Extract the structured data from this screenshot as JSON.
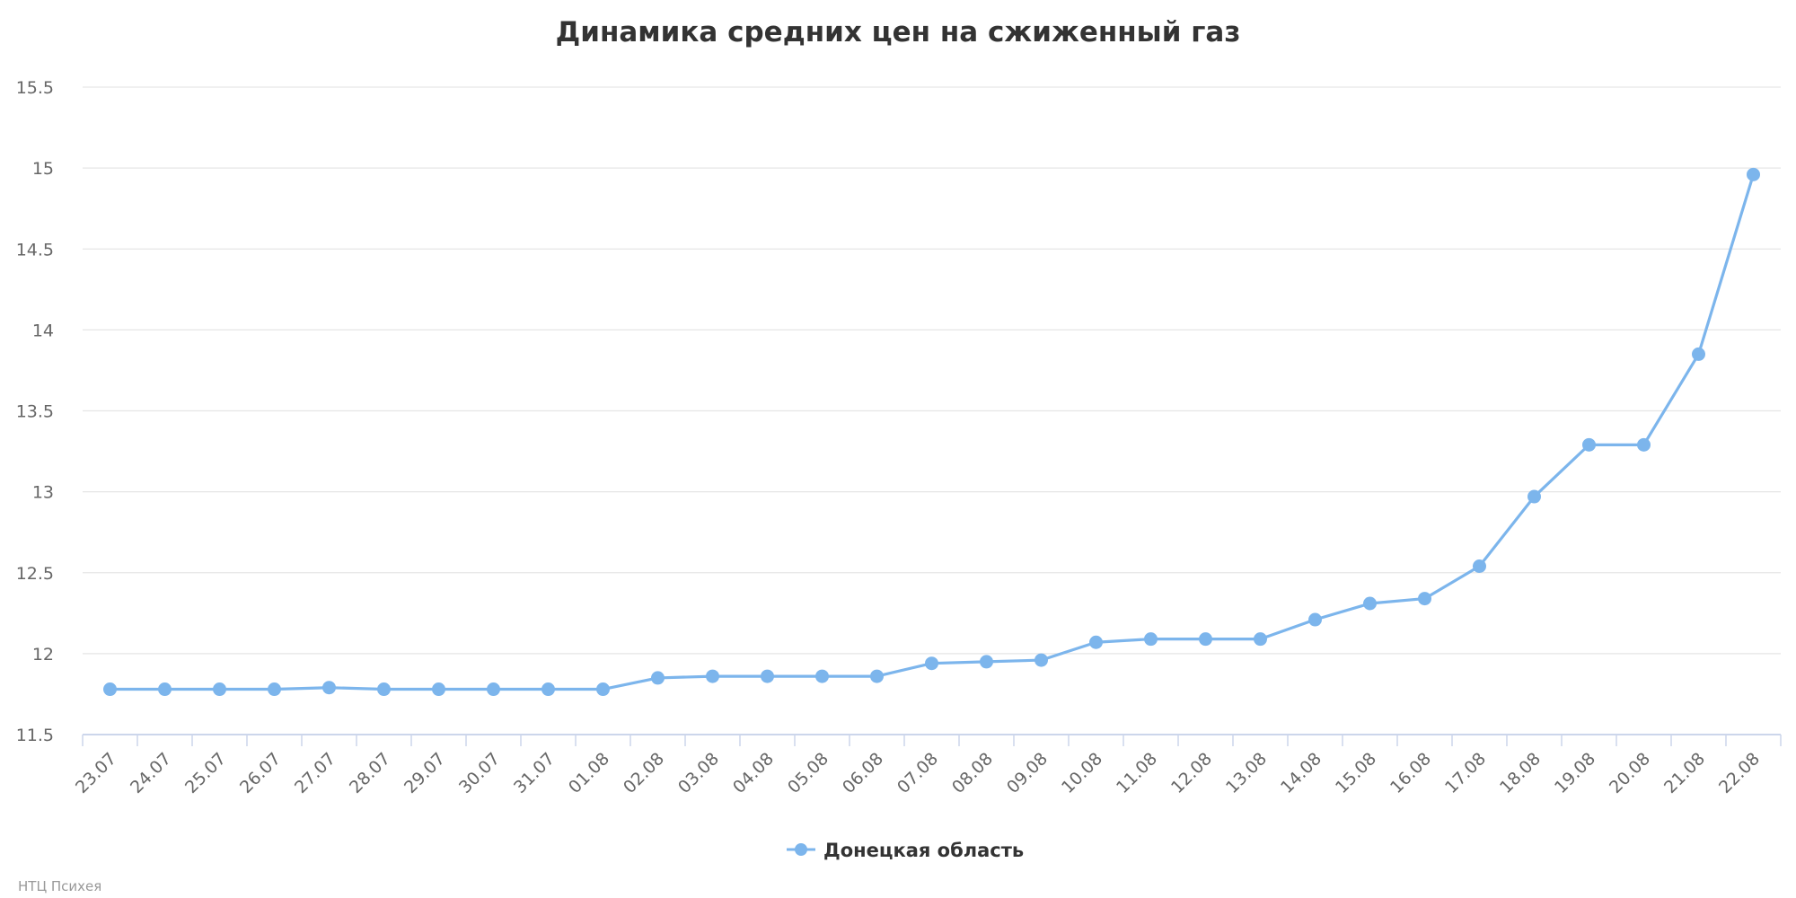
{
  "chart_data": {
    "type": "line",
    "title": "Динамика средних цен на сжиженный газ",
    "xlabel": "",
    "ylabel": "",
    "ylim": [
      11.5,
      15.5
    ],
    "yticks": [
      "11.5",
      "12",
      "12.5",
      "13",
      "13.5",
      "14",
      "14.5",
      "15",
      "15.5"
    ],
    "grid": true,
    "legend_position": "bottom-center",
    "categories": [
      "23.07",
      "24.07",
      "25.07",
      "26.07",
      "27.07",
      "28.07",
      "29.07",
      "30.07",
      "31.07",
      "01.08",
      "02.08",
      "03.08",
      "04.08",
      "05.08",
      "06.08",
      "07.08",
      "08.08",
      "09.08",
      "10.08",
      "11.08",
      "12.08",
      "13.08",
      "14.08",
      "15.08",
      "16.08",
      "17.08",
      "18.08",
      "19.08",
      "20.08",
      "21.08",
      "22.08"
    ],
    "series": [
      {
        "name": "Донецкая область",
        "color": "#7cb5ec",
        "values": [
          11.78,
          11.78,
          11.78,
          11.78,
          11.79,
          11.78,
          11.78,
          11.78,
          11.78,
          11.78,
          11.85,
          11.86,
          11.86,
          11.86,
          11.86,
          11.94,
          11.95,
          11.96,
          12.07,
          12.09,
          12.09,
          12.09,
          12.21,
          12.31,
          12.34,
          12.54,
          12.97,
          13.29,
          13.29,
          13.85,
          14.96
        ]
      }
    ]
  },
  "credit": "НТЦ Психея"
}
